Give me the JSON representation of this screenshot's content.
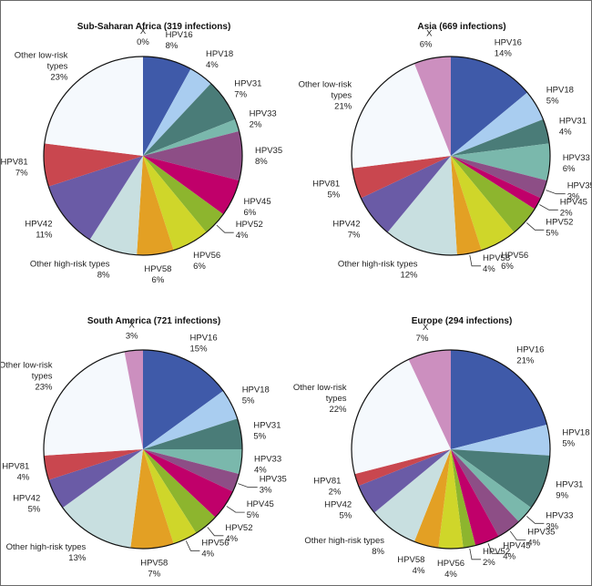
{
  "chart_data": [
    {
      "type": "pie",
      "title": "Sub-Saharan Africa (319 infections)",
      "categories": [
        "HPV16",
        "HPV18",
        "HPV31",
        "HPV33",
        "HPV35",
        "HPV45",
        "HPV52",
        "HPV56",
        "HPV58",
        "Other high-risk types",
        "HPV42",
        "HPV81",
        "Other low-risk types",
        "X"
      ],
      "values": [
        8,
        4,
        7,
        2,
        8,
        6,
        4,
        6,
        6,
        8,
        11,
        7,
        23,
        0
      ],
      "unit": "%"
    },
    {
      "type": "pie",
      "title": "Asia (669 infections)",
      "categories": [
        "HPV16",
        "HPV18",
        "HPV31",
        "HPV33",
        "HPV35",
        "HPV45",
        "HPV52",
        "HPV56",
        "HPV58",
        "Other high-risk types",
        "HPV42",
        "HPV81",
        "Other low-risk types",
        "X"
      ],
      "values": [
        14,
        5,
        4,
        6,
        3,
        2,
        5,
        6,
        4,
        12,
        7,
        5,
        21,
        6
      ],
      "unit": "%"
    },
    {
      "type": "pie",
      "title": "South America (721 infections)",
      "categories": [
        "HPV16",
        "HPV18",
        "HPV31",
        "HPV33",
        "HPV35",
        "HPV45",
        "HPV52",
        "HPV56",
        "HPV58",
        "Other high-risk types",
        "HPV42",
        "HPV81",
        "Other low-risk types",
        "X"
      ],
      "values": [
        15,
        5,
        5,
        4,
        3,
        5,
        4,
        4,
        7,
        13,
        5,
        4,
        23,
        3
      ],
      "unit": "%"
    },
    {
      "type": "pie",
      "title": "Europe (294 infections)",
      "categories": [
        "HPV16",
        "HPV18",
        "HPV31",
        "HPV33",
        "HPV35",
        "HPV45",
        "HPV52",
        "HPV56",
        "HPV58",
        "Other high-risk types",
        "HPV42",
        "HPV81",
        "Other low-risk types",
        "X"
      ],
      "values": [
        21,
        5,
        9,
        3,
        4,
        4,
        2,
        4,
        4,
        8,
        5,
        2,
        22,
        7
      ],
      "unit": "%"
    }
  ],
  "colors": {
    "HPV16": "#3f5aa9",
    "HPV18": "#a9cdf0",
    "HPV31": "#4a7c78",
    "HPV33": "#7ab8ac",
    "HPV35": "#8d4e86",
    "HPV45": "#c0006a",
    "HPV52": "#8db52e",
    "HPV56": "#cfd62a",
    "HPV58": "#e3a024",
    "Other high-risk types": "#c8dfe0",
    "HPV42": "#6a5ba6",
    "HPV81": "#c9474f",
    "Other low-risk types": "#f5f9fd",
    "X": "#cc8fbf"
  },
  "label_text": {
    "Other high-risk types": [
      "Other high-risk types"
    ],
    "Other low-risk types": [
      "Other low-risk",
      "types"
    ]
  }
}
